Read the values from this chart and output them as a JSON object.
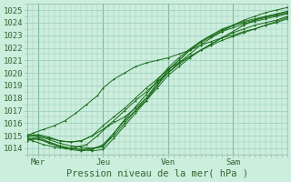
{
  "title": "",
  "xlabel": "Pression niveau de la mer( hPa )",
  "ylim": [
    1013.5,
    1025.5
  ],
  "xlim": [
    0,
    96
  ],
  "yticks": [
    1014,
    1015,
    1016,
    1017,
    1018,
    1019,
    1020,
    1021,
    1022,
    1023,
    1024,
    1025
  ],
  "xtick_positions": [
    4,
    28,
    52,
    76
  ],
  "xtick_labels": [
    "Mer",
    "Jeu",
    "Ven",
    "Sam"
  ],
  "bg_color": "#cceedd",
  "grid_color": "#99ccbb",
  "line_color": "#1a6b1a",
  "lines": [
    [
      0,
      1014.8,
      2,
      1014.6,
      6,
      1014.3,
      10,
      1014.1,
      14,
      1014.0,
      18,
      1014.1,
      22,
      1014.3,
      26,
      1015.0,
      30,
      1015.8,
      36,
      1016.5,
      40,
      1017.2,
      44,
      1018.0,
      48,
      1019.0,
      52,
      1020.0,
      56,
      1020.8,
      60,
      1021.5,
      64,
      1022.2,
      68,
      1022.8,
      72,
      1023.3,
      76,
      1023.8,
      80,
      1024.2,
      84,
      1024.5,
      88,
      1024.8,
      92,
      1025.0,
      96,
      1025.2
    ],
    [
      0,
      1014.9,
      4,
      1015.0,
      8,
      1014.7,
      12,
      1014.4,
      16,
      1014.2,
      20,
      1014.1,
      24,
      1014.0,
      28,
      1014.1,
      32,
      1015.2,
      36,
      1016.2,
      40,
      1017.0,
      44,
      1017.8,
      48,
      1018.8,
      52,
      1019.8,
      56,
      1020.5,
      60,
      1021.2,
      64,
      1021.8,
      68,
      1022.3,
      72,
      1022.8,
      76,
      1023.3,
      80,
      1023.8,
      84,
      1024.2,
      88,
      1024.5,
      92,
      1024.7,
      96,
      1024.9
    ],
    [
      0,
      1015.0,
      4,
      1015.1,
      8,
      1014.9,
      12,
      1014.6,
      16,
      1014.5,
      20,
      1014.6,
      24,
      1015.0,
      28,
      1015.8,
      32,
      1016.5,
      36,
      1017.2,
      40,
      1018.0,
      44,
      1018.8,
      48,
      1019.5,
      52,
      1020.3,
      56,
      1020.8,
      60,
      1021.3,
      64,
      1021.8,
      68,
      1022.3,
      72,
      1022.8,
      76,
      1023.2,
      80,
      1023.5,
      84,
      1023.8,
      88,
      1024.0,
      92,
      1024.2,
      96,
      1024.5
    ],
    [
      0,
      1014.7,
      4,
      1014.9,
      8,
      1014.5,
      12,
      1014.2,
      16,
      1014.0,
      20,
      1013.9,
      24,
      1013.8,
      28,
      1013.9,
      32,
      1014.8,
      36,
      1015.8,
      40,
      1016.8,
      44,
      1017.8,
      48,
      1019.0,
      52,
      1020.2,
      56,
      1021.0,
      60,
      1021.8,
      64,
      1022.5,
      68,
      1023.0,
      72,
      1023.5,
      76,
      1023.8,
      80,
      1024.1,
      84,
      1024.3,
      88,
      1024.5,
      92,
      1024.6,
      96,
      1024.8
    ],
    [
      0,
      1015.0,
      2,
      1015.2,
      6,
      1015.5,
      10,
      1015.8,
      14,
      1016.2,
      18,
      1016.8,
      22,
      1017.5,
      26,
      1018.2,
      28,
      1018.8,
      32,
      1019.5,
      36,
      1020.0,
      40,
      1020.5,
      44,
      1020.8,
      48,
      1021.0,
      52,
      1021.2,
      56,
      1021.5,
      60,
      1021.8,
      64,
      1022.2,
      68,
      1022.5,
      72,
      1022.8,
      76,
      1023.0,
      80,
      1023.3,
      84,
      1023.5,
      88,
      1023.8,
      92,
      1024.0,
      96,
      1024.3
    ],
    [
      0,
      1014.8,
      4,
      1014.7,
      8,
      1014.5,
      12,
      1014.2,
      16,
      1014.0,
      20,
      1013.9,
      24,
      1014.0,
      28,
      1014.2,
      32,
      1015.0,
      36,
      1016.0,
      40,
      1017.0,
      44,
      1018.0,
      48,
      1019.2,
      52,
      1020.2,
      56,
      1021.0,
      60,
      1021.8,
      64,
      1022.4,
      68,
      1022.9,
      72,
      1023.3,
      76,
      1023.6,
      80,
      1023.9,
      84,
      1024.1,
      88,
      1024.3,
      92,
      1024.5,
      96,
      1024.7
    ],
    [
      0,
      1015.1,
      4,
      1015.0,
      8,
      1014.8,
      12,
      1014.6,
      16,
      1014.5,
      20,
      1014.6,
      24,
      1015.0,
      28,
      1015.5,
      32,
      1016.2,
      36,
      1017.0,
      40,
      1017.8,
      44,
      1018.5,
      48,
      1019.3,
      52,
      1020.0,
      56,
      1020.7,
      60,
      1021.3,
      64,
      1021.8,
      68,
      1022.2,
      72,
      1022.6,
      76,
      1022.9,
      80,
      1023.2,
      84,
      1023.5,
      88,
      1023.8,
      92,
      1024.1,
      96,
      1024.4
    ],
    [
      0,
      1014.6,
      4,
      1014.8,
      8,
      1014.4,
      12,
      1014.1,
      16,
      1013.9,
      20,
      1013.8,
      24,
      1013.9,
      28,
      1014.3,
      32,
      1015.2,
      36,
      1016.3,
      40,
      1017.3,
      44,
      1018.3,
      48,
      1019.4,
      52,
      1020.4,
      56,
      1021.2,
      60,
      1021.9,
      64,
      1022.5,
      68,
      1023.0,
      72,
      1023.4,
      76,
      1023.8,
      80,
      1024.0,
      84,
      1024.2,
      88,
      1024.4,
      92,
      1024.6,
      96,
      1024.8
    ]
  ],
  "vline_positions": [
    4,
    28,
    52,
    76
  ],
  "fontsize": 6.5,
  "label_fontsize": 7.5
}
